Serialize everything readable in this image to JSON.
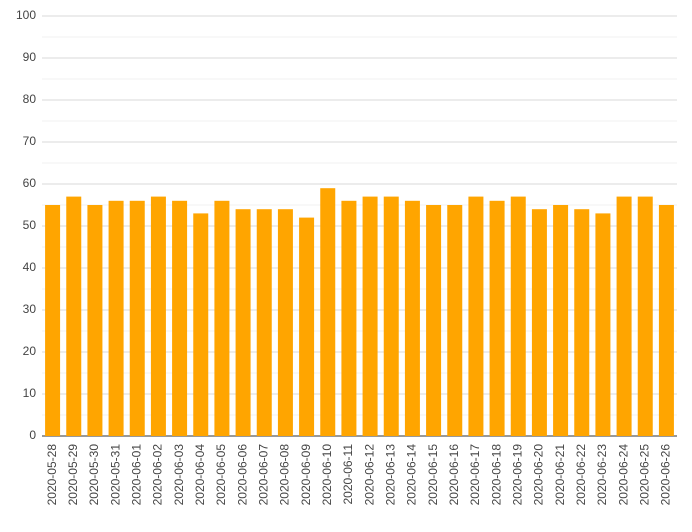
{
  "chart_data": {
    "type": "bar",
    "categories": [
      "2020-05-28",
      "2020-05-29",
      "2020-05-30",
      "2020-05-31",
      "2020-06-01",
      "2020-06-02",
      "2020-06-03",
      "2020-06-04",
      "2020-06-05",
      "2020-06-06",
      "2020-06-07",
      "2020-06-08",
      "2020-06-09",
      "2020-06-10",
      "2020-06-11",
      "2020-06-12",
      "2020-06-13",
      "2020-06-14",
      "2020-06-15",
      "2020-06-16",
      "2020-06-17",
      "2020-06-18",
      "2020-06-19",
      "2020-06-20",
      "2020-06-21",
      "2020-06-22",
      "2020-06-23",
      "2020-06-24",
      "2020-06-25",
      "2020-06-26"
    ],
    "values": [
      55,
      57,
      55,
      56,
      56,
      57,
      56,
      53,
      56,
      54,
      54,
      54,
      52,
      59,
      56,
      57,
      57,
      56,
      55,
      55,
      57,
      56,
      57,
      54,
      55,
      54,
      53,
      57,
      57,
      55
    ],
    "color": "#ffa500",
    "ylim": [
      0,
      100
    ],
    "yticks": [
      0,
      10,
      20,
      30,
      40,
      50,
      60,
      70,
      80,
      90,
      100
    ],
    "grid": true,
    "minor_grid": true
  }
}
